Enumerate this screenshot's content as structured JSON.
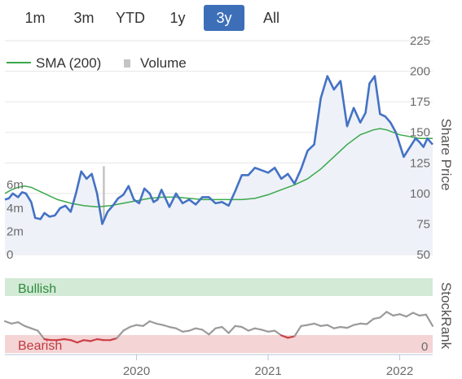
{
  "range_selector": {
    "buttons": [
      {
        "label": "1m",
        "active": false
      },
      {
        "label": "3m",
        "active": false
      },
      {
        "label": "YTD",
        "active": false
      },
      {
        "label": "1y",
        "active": false
      },
      {
        "label": "3y",
        "active": true
      },
      {
        "label": "All",
        "active": false
      }
    ]
  },
  "colors": {
    "price": "#4472c4",
    "price_fill": "#eef1f8",
    "sma": "#3aa84a",
    "volume": "#c4c4c4",
    "rank_neutral": "#9a9a9a",
    "rank_bearish": "#cc3e46",
    "bullish_band": "#d3ead6",
    "bearish_band": "#f4d4d4",
    "bullish_text": "#2e8b3e",
    "bearish_text": "#c03840",
    "active_button": "#3d6fb8"
  },
  "chart_data": [
    {
      "type": "line",
      "legend": {
        "placement": "top-left",
        "entries": [
          "SMA (200)",
          "Volume"
        ]
      },
      "y_right_label": "Share Price",
      "y_right_ticks": [
        50,
        75,
        100,
        125,
        150,
        175,
        200,
        225
      ],
      "y_right_lim": [
        50,
        225
      ],
      "y_left_ticks": [
        "0",
        "2m",
        "4m",
        "6m"
      ],
      "y_left_lim": [
        0,
        10
      ],
      "x_lim": [
        2019.0,
        2022.25
      ],
      "series": [
        {
          "name": "Share Price",
          "x": [
            2019.0,
            2019.03,
            2019.06,
            2019.1,
            2019.13,
            2019.16,
            2019.2,
            2019.23,
            2019.27,
            2019.3,
            2019.34,
            2019.38,
            2019.42,
            2019.46,
            2019.5,
            2019.54,
            2019.58,
            2019.62,
            2019.66,
            2019.7,
            2019.74,
            2019.78,
            2019.82,
            2019.86,
            2019.9,
            2019.94,
            2019.98,
            2020.02,
            2020.06,
            2020.1,
            2020.13,
            2020.16,
            2020.19,
            2020.22,
            2020.25,
            2020.3,
            2020.35,
            2020.4,
            2020.45,
            2020.5,
            2020.55,
            2020.6,
            2020.65,
            2020.7,
            2020.75,
            2020.8,
            2020.85,
            2020.9,
            2020.95,
            2021.0,
            2021.05,
            2021.1,
            2021.15,
            2021.2,
            2021.25,
            2021.3,
            2021.35,
            2021.4,
            2021.45,
            2021.5,
            2021.55,
            2021.6,
            2021.65,
            2021.7,
            2021.74,
            2021.77,
            2021.81,
            2021.85,
            2021.89,
            2021.93,
            2021.97,
            2022.0,
            2022.03,
            2022.06,
            2022.09,
            2022.12,
            2022.15,
            2022.18,
            2022.21,
            2022.25
          ],
          "values": [
            95,
            96,
            100,
            97,
            101,
            100,
            93,
            80,
            79,
            84,
            81,
            82,
            88,
            90,
            85,
            100,
            118,
            112,
            116,
            100,
            75,
            85,
            90,
            96,
            99,
            106,
            95,
            92,
            104,
            100,
            93,
            95,
            103,
            96,
            89,
            100,
            92,
            95,
            91,
            97,
            97,
            92,
            93,
            90,
            102,
            115,
            115,
            121,
            119,
            117,
            121,
            112,
            116,
            108,
            120,
            135,
            140,
            178,
            196,
            185,
            192,
            155,
            170,
            158,
            166,
            190,
            196,
            165,
            163,
            158,
            150,
            140,
            130,
            135,
            140,
            145,
            142,
            138,
            145,
            140
          ]
        },
        {
          "name": "SMA (200)",
          "x": [
            2019.0,
            2019.05,
            2019.1,
            2019.15,
            2019.2,
            2019.3,
            2019.4,
            2019.5,
            2019.6,
            2019.7,
            2019.8,
            2019.9,
            2020.0,
            2020.1,
            2020.2,
            2020.3,
            2020.4,
            2020.5,
            2020.6,
            2020.7,
            2020.8,
            2020.9,
            2021.0,
            2021.1,
            2021.2,
            2021.3,
            2021.4,
            2021.5,
            2021.6,
            2021.7,
            2021.75,
            2021.8,
            2021.85,
            2021.9,
            2021.95,
            2022.0,
            2022.05,
            2022.1,
            2022.15,
            2022.2,
            2022.25
          ],
          "values": [
            100,
            103,
            105,
            106,
            105,
            100,
            95,
            92,
            90,
            89,
            90,
            92,
            94,
            96,
            97,
            97,
            96,
            95,
            95,
            95,
            95,
            96,
            99,
            103,
            107,
            112,
            120,
            130,
            140,
            148,
            150,
            152,
            153,
            152,
            150,
            148,
            147,
            146,
            145,
            145,
            145
          ]
        },
        {
          "name": "Volume",
          "note": "volume in millions",
          "x": [
            2019.05,
            2019.15,
            2019.25,
            2019.35,
            2019.45,
            2019.55,
            2019.65,
            2019.75,
            2019.85,
            2019.95,
            2020.05,
            2020.15,
            2020.25,
            2020.35,
            2020.45,
            2020.55,
            2020.65,
            2020.75,
            2020.85,
            2020.95,
            2021.05,
            2021.15,
            2021.25,
            2021.35,
            2021.45,
            2021.55,
            2021.65,
            2021.75,
            2021.85,
            2021.95,
            2022.05,
            2022.15,
            2022.22
          ],
          "values": [
            0.3,
            0.3,
            0.4,
            0.3,
            0.5,
            0.3,
            0.9,
            7.6,
            0.5,
            0.4,
            0.6,
            0.3,
            0.5,
            0.4,
            0.4,
            0.6,
            0.3,
            0.5,
            1.3,
            0.4,
            0.5,
            0.3,
            0.6,
            0.4,
            0.8,
            2.2,
            0.5,
            0.6,
            0.9,
            0.4,
            0.6,
            0.5,
            0.8
          ]
        }
      ]
    },
    {
      "type": "line",
      "y_right_label": "StockRank",
      "y_right_ticks": [
        0
      ],
      "y_lim": [
        0,
        100
      ],
      "bands": {
        "upper_label": "Bullish",
        "lower_label": "Bearish"
      },
      "x_ticks": [
        "2020",
        "2021",
        "2022"
      ],
      "x_tick_values": [
        2020.0,
        2021.0,
        2022.0
      ],
      "x_lim": [
        2019.0,
        2022.25
      ],
      "series": [
        {
          "name": "StockRank",
          "x": [
            2019.0,
            2019.05,
            2019.1,
            2019.15,
            2019.2,
            2019.25,
            2019.3,
            2019.35,
            2019.4,
            2019.45,
            2019.5,
            2019.55,
            2019.6,
            2019.65,
            2019.7,
            2019.75,
            2019.8,
            2019.85,
            2019.9,
            2019.95,
            2020.0,
            2020.05,
            2020.1,
            2020.15,
            2020.2,
            2020.25,
            2020.3,
            2020.35,
            2020.4,
            2020.45,
            2020.5,
            2020.55,
            2020.6,
            2020.65,
            2020.7,
            2020.75,
            2020.8,
            2020.85,
            2020.9,
            2020.95,
            2021.0,
            2021.05,
            2021.1,
            2021.15,
            2021.2,
            2021.25,
            2021.3,
            2021.35,
            2021.4,
            2021.45,
            2021.5,
            2021.55,
            2021.6,
            2021.65,
            2021.7,
            2021.75,
            2021.8,
            2021.85,
            2021.9,
            2021.95,
            2022.0,
            2022.05,
            2022.1,
            2022.15,
            2022.2,
            2022.25
          ],
          "values": [
            50,
            45,
            48,
            40,
            35,
            30,
            12,
            10,
            10,
            12,
            10,
            5,
            10,
            8,
            12,
            10,
            10,
            14,
            30,
            38,
            42,
            40,
            50,
            45,
            42,
            38,
            35,
            28,
            30,
            35,
            32,
            22,
            35,
            38,
            25,
            40,
            38,
            30,
            35,
            32,
            28,
            30,
            20,
            15,
            18,
            40,
            42,
            45,
            40,
            42,
            35,
            38,
            36,
            42,
            45,
            44,
            55,
            58,
            70,
            62,
            65,
            60,
            68,
            62,
            64,
            40
          ],
          "bearish_threshold": 20
        }
      ]
    }
  ]
}
